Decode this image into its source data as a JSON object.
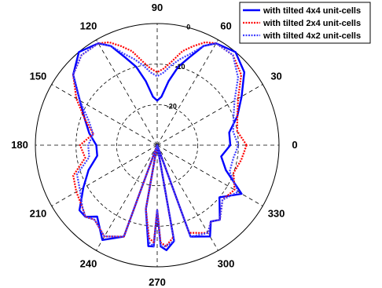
{
  "chart_data": {
    "type": "line",
    "subtype": "polar",
    "title": "",
    "angle_labels": [
      "0",
      "30",
      "60",
      "90",
      "120",
      "150",
      "180",
      "210",
      "240",
      "270",
      "300",
      "330"
    ],
    "angle_units": "degrees",
    "r_ticks": [
      "-20",
      "-10",
      "0"
    ],
    "r_range": [
      -30,
      0
    ],
    "grid": true,
    "legend_position": "top-right",
    "series": [
      {
        "name": "with tilted 4x4 unit-cells",
        "color": "#0000ff",
        "line_style": "solid",
        "theta": [
          0,
          10,
          20,
          30,
          40,
          50,
          60,
          65,
          70,
          75,
          80,
          85,
          90,
          95,
          100,
          105,
          110,
          115,
          120,
          130,
          140,
          150,
          160,
          170,
          180,
          190,
          200,
          210,
          220,
          225,
          230,
          240,
          250,
          255,
          260,
          265,
          268,
          270,
          272,
          275,
          280,
          285,
          290,
          300,
          305,
          310,
          320,
          330,
          340,
          350
        ],
        "r": [
          -12,
          -12,
          -9,
          -6,
          -2,
          0,
          -1,
          -3,
          -7,
          -10,
          -14,
          -18,
          -19,
          -18,
          -14,
          -10,
          -7,
          -3,
          -1,
          0,
          -3,
          -8,
          -11,
          -13,
          -15,
          -15,
          -12,
          -9,
          -5,
          -5,
          -7,
          -3,
          -6,
          -30,
          -14,
          -5,
          -5,
          -14,
          -5,
          -4,
          -6,
          -30,
          -6,
          -4,
          -7,
          -6,
          -10,
          -6,
          -12,
          -14
        ]
      },
      {
        "name": "with tilted 2x4 unit-cells",
        "color": "#ff0000",
        "line_style": "dotted",
        "theta": [
          0,
          10,
          20,
          30,
          40,
          50,
          60,
          65,
          70,
          75,
          80,
          85,
          90,
          95,
          100,
          105,
          110,
          115,
          120,
          130,
          140,
          150,
          160,
          170,
          180,
          190,
          200,
          210,
          220,
          225,
          230,
          240,
          250,
          255,
          260,
          265,
          268,
          270,
          272,
          275,
          280,
          285,
          290,
          300,
          305,
          310,
          320,
          330,
          340,
          350
        ],
        "r": [
          -8,
          -10,
          -9,
          -7,
          -3,
          -1,
          -1,
          -2,
          -4,
          -6,
          -9,
          -11,
          -12,
          -11,
          -9,
          -6,
          -4,
          -2,
          -1,
          -1,
          -3,
          -7,
          -11,
          -14,
          -11,
          -12,
          -8,
          -7,
          -6,
          -5,
          -6,
          -4,
          -6,
          -30,
          -14,
          -7,
          -6,
          -14,
          -6,
          -5,
          -7,
          -30,
          -7,
          -5,
          -7,
          -6,
          -9,
          -8,
          -10,
          -9
        ]
      },
      {
        "name": "with tilted 4x2 unit-cells",
        "color": "#4040ff",
        "line_style": "dotted",
        "theta": [
          0,
          10,
          20,
          30,
          40,
          50,
          60,
          65,
          70,
          75,
          80,
          85,
          90,
          95,
          100,
          105,
          110,
          115,
          120,
          130,
          140,
          150,
          160,
          170,
          180,
          190,
          200,
          210,
          220,
          225,
          230,
          240,
          250,
          255,
          260,
          265,
          268,
          270,
          272,
          275,
          280,
          285,
          290,
          300,
          305,
          310,
          320,
          330,
          340,
          350
        ],
        "r": [
          -10,
          -11,
          -10,
          -8,
          -4,
          -1,
          -1,
          -3,
          -6,
          -8,
          -10,
          -12,
          -13,
          -12,
          -10,
          -8,
          -6,
          -3,
          -1,
          -1,
          -3,
          -8,
          -12,
          -14,
          -13,
          -13,
          -9,
          -8,
          -6,
          -5,
          -6,
          -4,
          -6,
          -30,
          -14,
          -6,
          -5,
          -14,
          -5,
          -5,
          -6,
          -30,
          -6,
          -5,
          -7,
          -6,
          -9,
          -7,
          -11,
          -11
        ]
      }
    ]
  }
}
